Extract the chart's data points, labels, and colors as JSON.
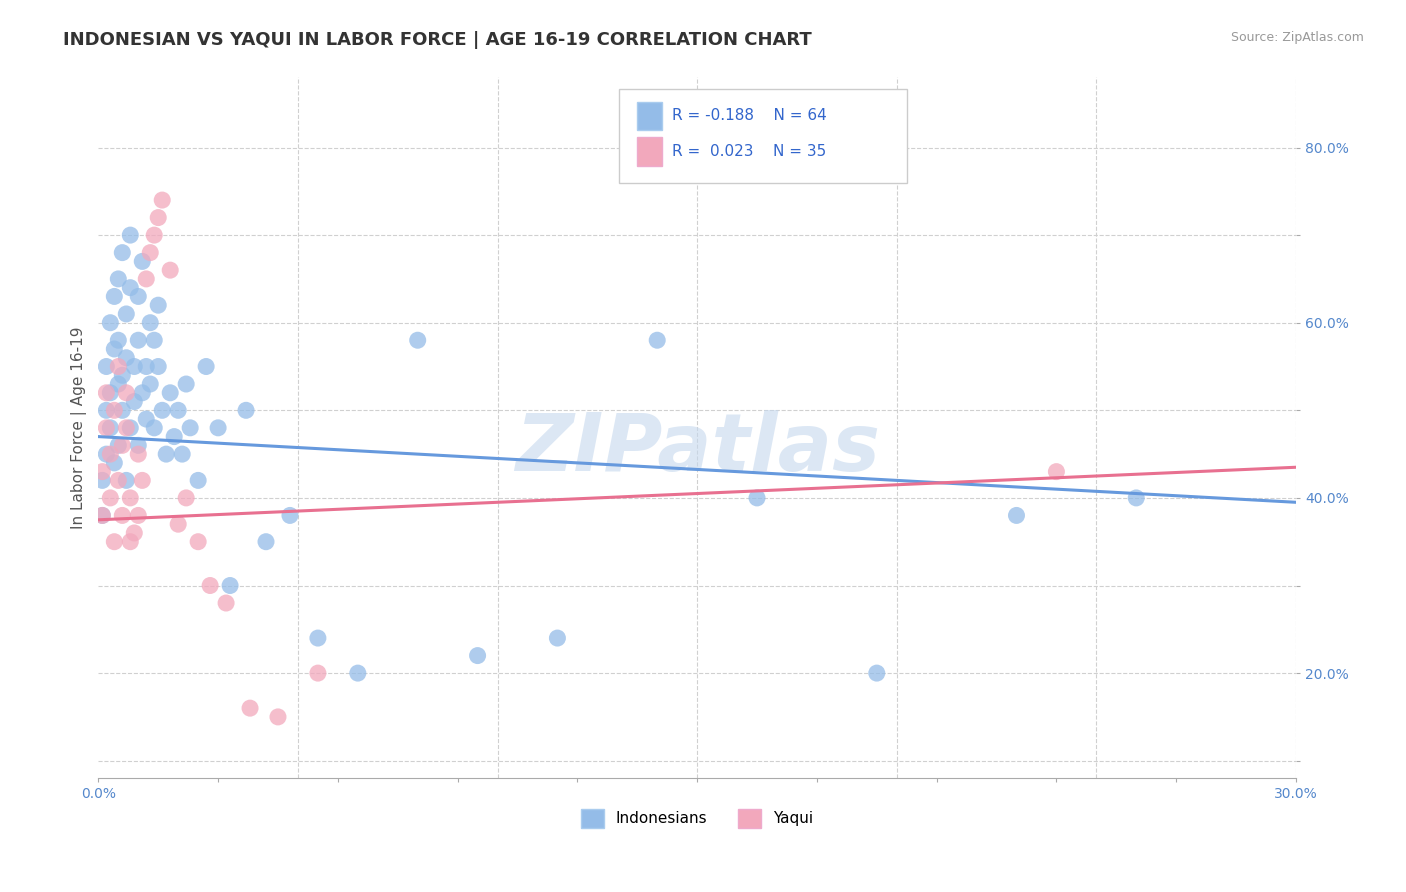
{
  "title": "INDONESIAN VS YAQUI IN LABOR FORCE | AGE 16-19 CORRELATION CHART",
  "source_text": "Source: ZipAtlas.com",
  "ylabel": "In Labor Force | Age 16-19",
  "xlim": [
    0.0,
    0.3
  ],
  "ylim": [
    0.08,
    0.88
  ],
  "yticks": [
    0.1,
    0.2,
    0.3,
    0.4,
    0.5,
    0.6,
    0.7,
    0.8
  ],
  "ytick_labels": [
    "",
    "20.0%",
    "",
    "40.0%",
    "",
    "60.0%",
    "",
    "80.0%"
  ],
  "xtick_positions": [
    0.0,
    0.03,
    0.06,
    0.09,
    0.12,
    0.15,
    0.18,
    0.21,
    0.24,
    0.27,
    0.3
  ],
  "xtick_labels": [
    "0.0%",
    "",
    "",
    "",
    "",
    "",
    "",
    "",
    "",
    "",
    "30.0%"
  ],
  "background_color": "#ffffff",
  "grid_color": "#d0d0d0",
  "watermark_text": "ZIPatlas",
  "watermark_color": "#c5d8ee",
  "blue_color": "#94bce8",
  "pink_color": "#f2a8bc",
  "blue_line_color": "#6699dd",
  "pink_line_color": "#e87090",
  "legend_R_color": "#3366cc",
  "R_indonesian": -0.188,
  "N_indonesian": 64,
  "R_yaqui": 0.023,
  "N_yaqui": 35,
  "indonesian_x": [
    0.001,
    0.001,
    0.002,
    0.002,
    0.002,
    0.003,
    0.003,
    0.003,
    0.004,
    0.004,
    0.004,
    0.005,
    0.005,
    0.005,
    0.005,
    0.006,
    0.006,
    0.006,
    0.007,
    0.007,
    0.007,
    0.008,
    0.008,
    0.008,
    0.009,
    0.009,
    0.01,
    0.01,
    0.01,
    0.011,
    0.011,
    0.012,
    0.012,
    0.013,
    0.013,
    0.014,
    0.014,
    0.015,
    0.015,
    0.016,
    0.017,
    0.018,
    0.019,
    0.02,
    0.021,
    0.022,
    0.023,
    0.025,
    0.027,
    0.03,
    0.033,
    0.037,
    0.042,
    0.048,
    0.055,
    0.065,
    0.08,
    0.095,
    0.115,
    0.14,
    0.165,
    0.195,
    0.23,
    0.26
  ],
  "indonesian_y": [
    0.38,
    0.42,
    0.45,
    0.5,
    0.55,
    0.52,
    0.48,
    0.6,
    0.44,
    0.57,
    0.63,
    0.46,
    0.53,
    0.58,
    0.65,
    0.5,
    0.54,
    0.68,
    0.42,
    0.56,
    0.61,
    0.48,
    0.64,
    0.7,
    0.51,
    0.55,
    0.46,
    0.58,
    0.63,
    0.52,
    0.67,
    0.49,
    0.55,
    0.6,
    0.53,
    0.58,
    0.48,
    0.55,
    0.62,
    0.5,
    0.45,
    0.52,
    0.47,
    0.5,
    0.45,
    0.53,
    0.48,
    0.42,
    0.55,
    0.48,
    0.3,
    0.5,
    0.35,
    0.38,
    0.24,
    0.2,
    0.58,
    0.22,
    0.24,
    0.58,
    0.4,
    0.2,
    0.38,
    0.4
  ],
  "yaqui_x": [
    0.001,
    0.001,
    0.002,
    0.002,
    0.003,
    0.003,
    0.004,
    0.004,
    0.005,
    0.005,
    0.006,
    0.006,
    0.007,
    0.007,
    0.008,
    0.008,
    0.009,
    0.01,
    0.01,
    0.011,
    0.012,
    0.013,
    0.014,
    0.015,
    0.016,
    0.018,
    0.02,
    0.022,
    0.025,
    0.028,
    0.032,
    0.038,
    0.045,
    0.055,
    0.24
  ],
  "yaqui_y": [
    0.38,
    0.43,
    0.48,
    0.52,
    0.4,
    0.45,
    0.35,
    0.5,
    0.42,
    0.55,
    0.38,
    0.46,
    0.52,
    0.48,
    0.35,
    0.4,
    0.36,
    0.45,
    0.38,
    0.42,
    0.65,
    0.68,
    0.7,
    0.72,
    0.74,
    0.66,
    0.37,
    0.4,
    0.35,
    0.3,
    0.28,
    0.16,
    0.15,
    0.2,
    0.43
  ],
  "blue_trendline_x0": 0.0,
  "blue_trendline_y0": 0.47,
  "blue_trendline_x1": 0.3,
  "blue_trendline_y1": 0.395,
  "pink_trendline_x0": 0.0,
  "pink_trendline_y0": 0.375,
  "pink_trendline_x1": 0.3,
  "pink_trendline_y1": 0.435
}
